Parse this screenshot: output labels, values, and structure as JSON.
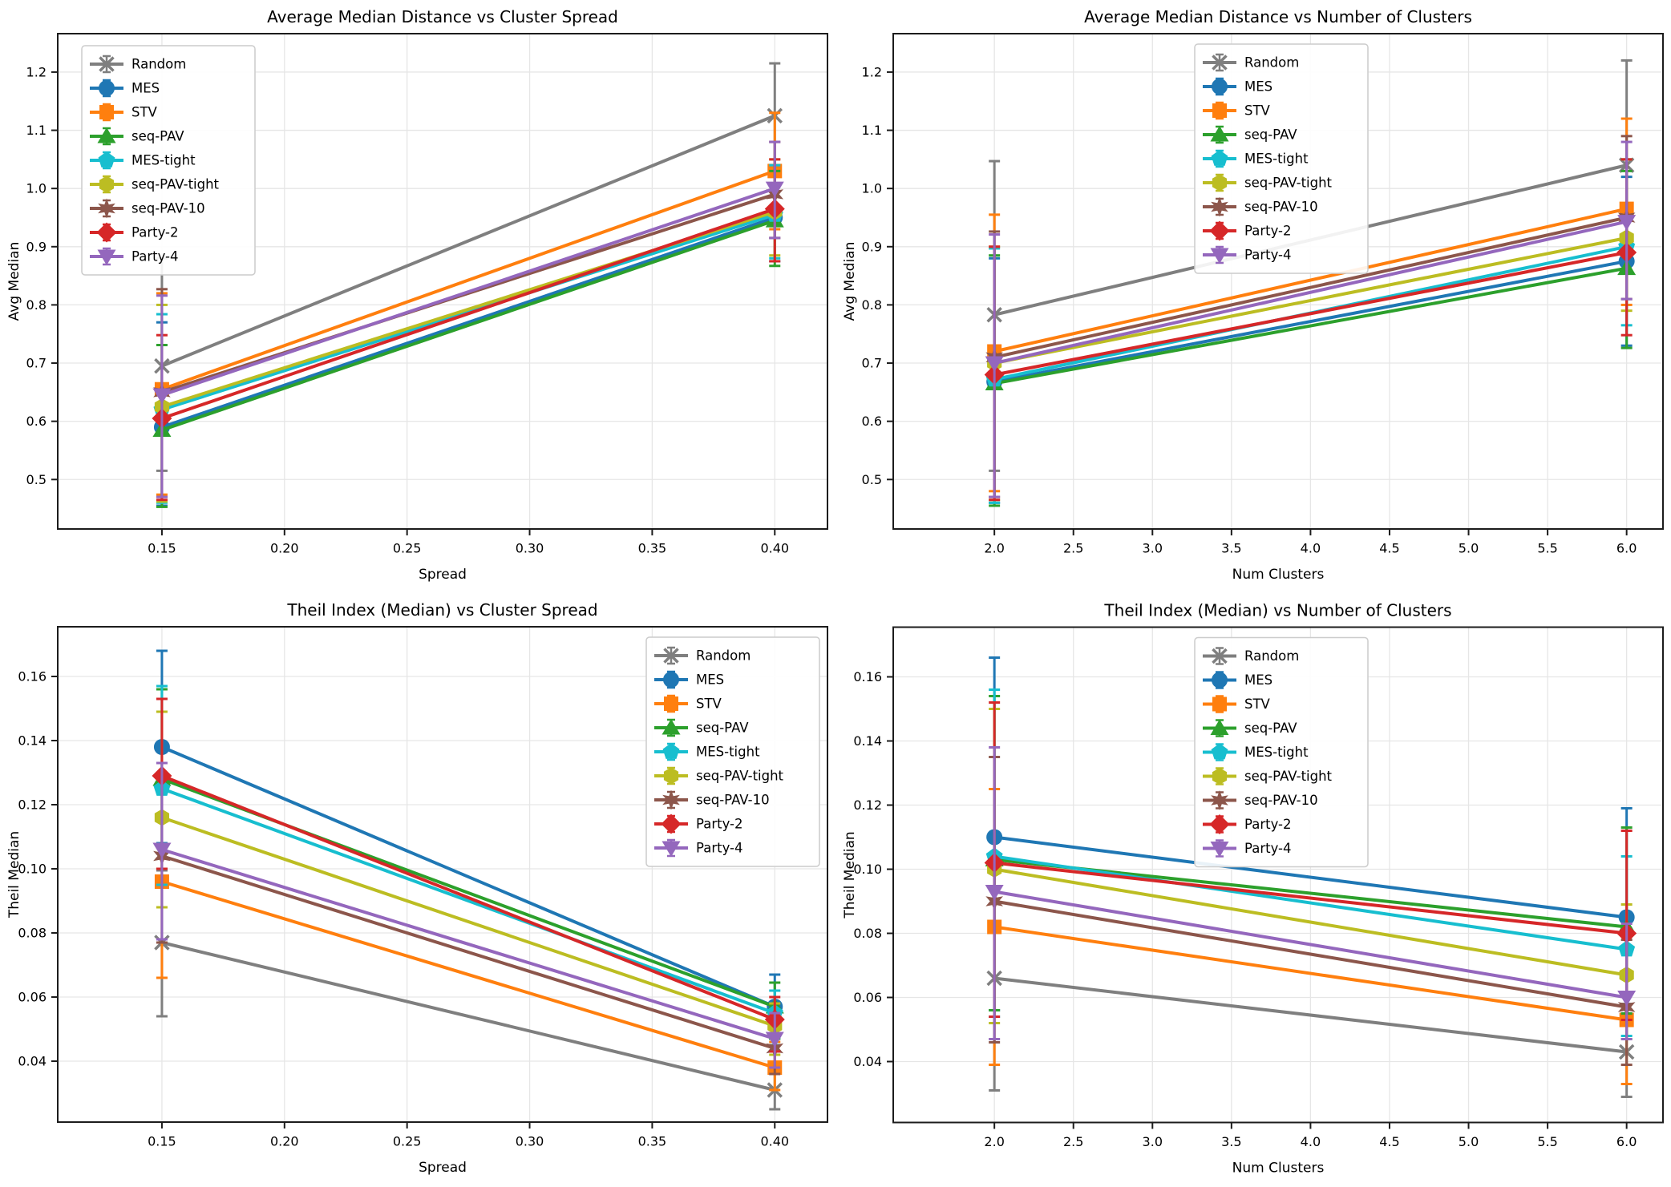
{
  "figure": {
    "background": "#ffffff"
  },
  "series_styles": [
    {
      "name": "Random",
      "color": "#7f7f7f",
      "marker": "x"
    },
    {
      "name": "MES",
      "color": "#1f77b4",
      "marker": "o"
    },
    {
      "name": "STV",
      "color": "#ff7f0e",
      "marker": "s"
    },
    {
      "name": "seq-PAV",
      "color": "#2ca02c",
      "marker": "^"
    },
    {
      "name": "MES-tight",
      "color": "#17becf",
      "marker": "p"
    },
    {
      "name": "seq-PAV-tight",
      "color": "#bcbd22",
      "marker": "h"
    },
    {
      "name": "seq-PAV-10",
      "color": "#8c564b",
      "marker": "*"
    },
    {
      "name": "Party-2",
      "color": "#d62728",
      "marker": "D"
    },
    {
      "name": "Party-4",
      "color": "#9467bd",
      "marker": "v"
    }
  ],
  "chart_data": [
    {
      "type": "line",
      "title": "Average Median Distance vs Cluster Spread",
      "xlabel": "Spread",
      "ylabel": "Avg Median",
      "grid": true,
      "legend_position": "upper-left",
      "x": [
        0.15,
        0.4
      ],
      "xlim": [
        0.1075,
        0.4215
      ],
      "ylim": [
        0.415,
        1.266
      ],
      "xticks": [
        0.15,
        0.2,
        0.25,
        0.3,
        0.35,
        0.4
      ],
      "xtick_labels": [
        "0.15",
        "0.20",
        "0.25",
        "0.30",
        "0.35",
        "0.40"
      ],
      "yticks": [
        0.5,
        0.6,
        0.7,
        0.8,
        0.9,
        1.0,
        1.1,
        1.2
      ],
      "ytick_labels": [
        "0.5",
        "0.6",
        "0.7",
        "0.8",
        "0.9",
        "1.0",
        "1.1",
        "1.2"
      ],
      "series": [
        {
          "name": "Random",
          "y": [
            0.695,
            1.125
          ],
          "err_lo": [
            0.515,
            1.04
          ],
          "err_hi": [
            0.88,
            1.215
          ]
        },
        {
          "name": "MES",
          "y": [
            0.59,
            0.95
          ],
          "err_lo": [
            0.455,
            0.875
          ],
          "err_hi": [
            0.77,
            1.04
          ]
        },
        {
          "name": "STV",
          "y": [
            0.655,
            1.03
          ],
          "err_lo": [
            0.474,
            0.93
          ],
          "err_hi": [
            0.82,
            1.13
          ]
        },
        {
          "name": "seq-PAV",
          "y": [
            0.585,
            0.945
          ],
          "err_lo": [
            0.453,
            0.867
          ],
          "err_hi": [
            0.731,
            1.03
          ]
        },
        {
          "name": "MES-tight",
          "y": [
            0.62,
            0.955
          ],
          "err_lo": [
            0.46,
            0.88
          ],
          "err_hi": [
            0.784,
            1.04
          ]
        },
        {
          "name": "seq-PAV-tight",
          "y": [
            0.625,
            0.96
          ],
          "err_lo": [
            0.462,
            0.885
          ],
          "err_hi": [
            0.8,
            1.05
          ]
        },
        {
          "name": "seq-PAV-10",
          "y": [
            0.65,
            0.99
          ],
          "err_lo": [
            0.47,
            0.915
          ],
          "err_hi": [
            0.827,
            1.08
          ]
        },
        {
          "name": "Party-2",
          "y": [
            0.605,
            0.965
          ],
          "err_lo": [
            0.465,
            0.875
          ],
          "err_hi": [
            0.748,
            1.05
          ]
        },
        {
          "name": "Party-4",
          "y": [
            0.645,
            1.0
          ],
          "err_lo": [
            0.47,
            0.915
          ],
          "err_hi": [
            0.816,
            1.08
          ]
        }
      ]
    },
    {
      "type": "line",
      "title": "Average Median Distance vs Number of Clusters",
      "xlabel": "Num Clusters",
      "ylabel": "Avg Median",
      "grid": true,
      "legend_position": "upper-center",
      "x": [
        2,
        6
      ],
      "xlim": [
        1.36,
        6.23
      ],
      "ylim": [
        0.415,
        1.266
      ],
      "xticks": [
        2.0,
        2.5,
        3.0,
        3.5,
        4.0,
        4.5,
        5.0,
        5.5,
        6.0
      ],
      "xtick_labels": [
        "2.0",
        "2.5",
        "3.0",
        "3.5",
        "4.0",
        "4.5",
        "5.0",
        "5.5",
        "6.0"
      ],
      "yticks": [
        0.5,
        0.6,
        0.7,
        0.8,
        0.9,
        1.0,
        1.1,
        1.2
      ],
      "ytick_labels": [
        "0.5",
        "0.6",
        "0.7",
        "0.8",
        "0.9",
        "1.0",
        "1.1",
        "1.2"
      ],
      "series": [
        {
          "name": "Random",
          "y": [
            0.783,
            1.04
          ],
          "err_lo": [
            0.515,
            0.86
          ],
          "err_hi": [
            1.047,
            1.22
          ]
        },
        {
          "name": "MES",
          "y": [
            0.668,
            0.875
          ],
          "err_lo": [
            0.46,
            0.73
          ],
          "err_hi": [
            0.88,
            1.02
          ]
        },
        {
          "name": "STV",
          "y": [
            0.72,
            0.965
          ],
          "err_lo": [
            0.48,
            0.8
          ],
          "err_hi": [
            0.955,
            1.12
          ]
        },
        {
          "name": "seq-PAV",
          "y": [
            0.665,
            0.863
          ],
          "err_lo": [
            0.455,
            0.726
          ],
          "err_hi": [
            0.885,
            1.03
          ]
        },
        {
          "name": "MES-tight",
          "y": [
            0.672,
            0.9
          ],
          "err_lo": [
            0.46,
            0.765
          ],
          "err_hi": [
            0.897,
            1.05
          ]
        },
        {
          "name": "seq-PAV-tight",
          "y": [
            0.7,
            0.915
          ],
          "err_lo": [
            0.465,
            0.79
          ],
          "err_hi": [
            0.9,
            1.05
          ]
        },
        {
          "name": "seq-PAV-10",
          "y": [
            0.71,
            0.95
          ],
          "err_lo": [
            0.47,
            0.81
          ],
          "err_hi": [
            0.926,
            1.09
          ]
        },
        {
          "name": "Party-2",
          "y": [
            0.68,
            0.89
          ],
          "err_lo": [
            0.465,
            0.748
          ],
          "err_hi": [
            0.9,
            1.05
          ]
        },
        {
          "name": "Party-4",
          "y": [
            0.7,
            0.943
          ],
          "err_lo": [
            0.47,
            0.81
          ],
          "err_hi": [
            0.921,
            1.08
          ]
        }
      ]
    },
    {
      "type": "line",
      "title": "Theil Index (Median) vs Cluster Spread",
      "xlabel": "Spread",
      "ylabel": "Theil Median",
      "grid": true,
      "legend_position": "upper-right",
      "x": [
        0.15,
        0.4
      ],
      "xlim": [
        0.1075,
        0.4215
      ],
      "ylim": [
        0.021,
        0.1755
      ],
      "xticks": [
        0.15,
        0.2,
        0.25,
        0.3,
        0.35,
        0.4
      ],
      "xtick_labels": [
        "0.15",
        "0.20",
        "0.25",
        "0.30",
        "0.35",
        "0.40"
      ],
      "yticks": [
        0.04,
        0.06,
        0.08,
        0.1,
        0.12,
        0.14,
        0.16
      ],
      "ytick_labels": [
        "0.04",
        "0.06",
        "0.08",
        "0.10",
        "0.12",
        "0.14",
        "0.16"
      ],
      "series": [
        {
          "name": "Random",
          "y": [
            0.077,
            0.031
          ],
          "err_lo": [
            0.054,
            0.025
          ],
          "err_hi": [
            0.0995,
            0.037
          ]
        },
        {
          "name": "MES",
          "y": [
            0.138,
            0.057
          ],
          "err_lo": [
            0.108,
            0.047
          ],
          "err_hi": [
            0.168,
            0.067
          ]
        },
        {
          "name": "STV",
          "y": [
            0.096,
            0.038
          ],
          "err_lo": [
            0.066,
            0.031
          ],
          "err_hi": [
            0.126,
            0.046
          ]
        },
        {
          "name": "seq-PAV",
          "y": [
            0.128,
            0.057
          ],
          "err_lo": [
            0.1,
            0.047
          ],
          "err_hi": [
            0.156,
            0.0645
          ]
        },
        {
          "name": "MES-tight",
          "y": [
            0.125,
            0.055
          ],
          "err_lo": [
            0.095,
            0.045
          ],
          "err_hi": [
            0.157,
            0.062
          ]
        },
        {
          "name": "seq-PAV-tight",
          "y": [
            0.116,
            0.051
          ],
          "err_lo": [
            0.088,
            0.042
          ],
          "err_hi": [
            0.149,
            0.058
          ]
        },
        {
          "name": "seq-PAV-10",
          "y": [
            0.104,
            0.044
          ],
          "err_lo": [
            0.077,
            0.036
          ],
          "err_hi": [
            0.13,
            0.052
          ]
        },
        {
          "name": "Party-2",
          "y": [
            0.129,
            0.053
          ],
          "err_lo": [
            0.1,
            0.043
          ],
          "err_hi": [
            0.153,
            0.06
          ]
        },
        {
          "name": "Party-4",
          "y": [
            0.106,
            0.047
          ],
          "err_lo": [
            0.078,
            0.038
          ],
          "err_hi": [
            0.133,
            0.055
          ]
        }
      ]
    },
    {
      "type": "line",
      "title": "Theil Index (Median) vs Number of Clusters",
      "xlabel": "Num Clusters",
      "ylabel": "Theil Median",
      "grid": true,
      "legend_position": "upper-center",
      "x": [
        2,
        6
      ],
      "xlim": [
        1.36,
        6.23
      ],
      "ylim": [
        0.021,
        0.1755
      ],
      "xticks": [
        2.0,
        2.5,
        3.0,
        3.5,
        4.0,
        4.5,
        5.0,
        5.5,
        6.0
      ],
      "xtick_labels": [
        "2.0",
        "2.5",
        "3.0",
        "3.5",
        "4.0",
        "4.5",
        "5.0",
        "5.5",
        "6.0"
      ],
      "yticks": [
        0.04,
        0.06,
        0.08,
        0.1,
        0.12,
        0.14,
        0.16
      ],
      "ytick_labels": [
        "0.04",
        "0.06",
        "0.08",
        "0.10",
        "0.12",
        "0.14",
        "0.16"
      ],
      "series": [
        {
          "name": "Random",
          "y": [
            0.066,
            0.043
          ],
          "err_lo": [
            0.031,
            0.029
          ],
          "err_hi": [
            0.1,
            0.058
          ]
        },
        {
          "name": "MES",
          "y": [
            0.11,
            0.085
          ],
          "err_lo": [
            0.056,
            0.055
          ],
          "err_hi": [
            0.166,
            0.119
          ]
        },
        {
          "name": "STV",
          "y": [
            0.082,
            0.053
          ],
          "err_lo": [
            0.039,
            0.033
          ],
          "err_hi": [
            0.125,
            0.075
          ]
        },
        {
          "name": "seq-PAV",
          "y": [
            0.103,
            0.082
          ],
          "err_lo": [
            0.056,
            0.055
          ],
          "err_hi": [
            0.154,
            0.113
          ]
        },
        {
          "name": "MES-tight",
          "y": [
            0.104,
            0.075
          ],
          "err_lo": [
            0.054,
            0.048
          ],
          "err_hi": [
            0.156,
            0.104
          ]
        },
        {
          "name": "seq-PAV-tight",
          "y": [
            0.1,
            0.067
          ],
          "err_lo": [
            0.052,
            0.047
          ],
          "err_hi": [
            0.15,
            0.089
          ]
        },
        {
          "name": "seq-PAV-10",
          "y": [
            0.09,
            0.057
          ],
          "err_lo": [
            0.046,
            0.039
          ],
          "err_hi": [
            0.135,
            0.078
          ]
        },
        {
          "name": "Party-2",
          "y": [
            0.102,
            0.08
          ],
          "err_lo": [
            0.054,
            0.053
          ],
          "err_hi": [
            0.152,
            0.112
          ]
        },
        {
          "name": "Party-4",
          "y": [
            0.093,
            0.06
          ],
          "err_lo": [
            0.047,
            0.047
          ],
          "err_hi": [
            0.138,
            0.083
          ]
        }
      ]
    }
  ]
}
